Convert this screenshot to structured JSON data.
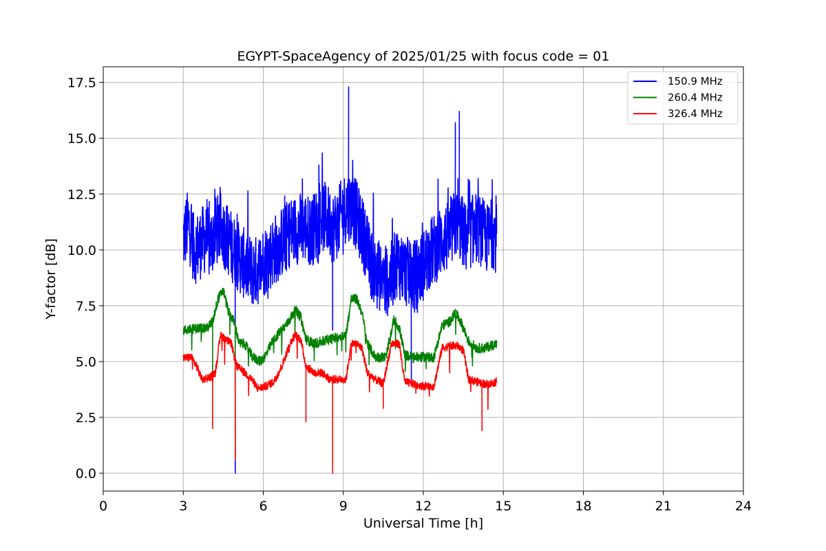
{
  "chart_data": {
    "type": "line",
    "title": "EGYPT-SpaceAgency of 2025/01/25 with focus code = 01",
    "xlabel": "Universal Time [h]",
    "ylabel": "Y-factor [dB]",
    "xlim": [
      0,
      24
    ],
    "ylim": [
      -0.8,
      18.2
    ],
    "xticks": [
      0,
      3,
      6,
      9,
      12,
      15,
      18,
      21,
      24
    ],
    "xtick_labels": [
      "0",
      "3",
      "6",
      "9",
      "12",
      "15",
      "18",
      "21",
      "24"
    ],
    "yticks": [
      0.0,
      2.5,
      5.0,
      7.5,
      10.0,
      12.5,
      15.0,
      17.5
    ],
    "ytick_labels": [
      "0.0",
      "2.5",
      "5.0",
      "7.5",
      "10.0",
      "12.5",
      "15.0",
      "17.5"
    ],
    "grid": true,
    "legend_position": "top-right",
    "x_range_of_data": [
      3.0,
      14.75
    ],
    "series": [
      {
        "name": "150.9 MHz",
        "color": "#0000ff",
        "points": [
          [
            3.0,
            10.5
          ],
          [
            3.2,
            11.2
          ],
          [
            3.4,
            10.0
          ],
          [
            3.6,
            10.2
          ],
          [
            3.8,
            10.5
          ],
          [
            4.0,
            10.2
          ],
          [
            4.2,
            10.8
          ],
          [
            4.4,
            11.0
          ],
          [
            4.6,
            10.6
          ],
          [
            4.8,
            10.2
          ],
          [
            5.0,
            9.8
          ],
          [
            5.2,
            9.5
          ],
          [
            5.4,
            9.2
          ],
          [
            5.6,
            9.0
          ],
          [
            5.8,
            9.1
          ],
          [
            6.0,
            9.5
          ],
          [
            6.2,
            9.7
          ],
          [
            6.4,
            10.0
          ],
          [
            6.6,
            10.2
          ],
          [
            6.8,
            10.5
          ],
          [
            7.0,
            10.8
          ],
          [
            7.2,
            10.9
          ],
          [
            7.4,
            11.0
          ],
          [
            7.6,
            11.0
          ],
          [
            7.8,
            10.8
          ],
          [
            8.0,
            11.2
          ],
          [
            8.2,
            11.5
          ],
          [
            8.4,
            11.4
          ],
          [
            8.6,
            11.0
          ],
          [
            8.8,
            11.2
          ],
          [
            9.0,
            11.8
          ],
          [
            9.2,
            12.0
          ],
          [
            9.4,
            11.8
          ],
          [
            9.6,
            11.2
          ],
          [
            9.8,
            10.5
          ],
          [
            10.0,
            9.5
          ],
          [
            10.2,
            9.0
          ],
          [
            10.4,
            8.8
          ],
          [
            10.6,
            8.5
          ],
          [
            10.8,
            8.8
          ],
          [
            11.0,
            9.5
          ],
          [
            11.2,
            9.2
          ],
          [
            11.4,
            9.0
          ],
          [
            11.6,
            8.8
          ],
          [
            11.8,
            9.0
          ],
          [
            12.0,
            9.3
          ],
          [
            12.2,
            9.8
          ],
          [
            12.4,
            10.0
          ],
          [
            12.6,
            10.3
          ],
          [
            12.8,
            10.5
          ],
          [
            13.0,
            10.6
          ],
          [
            13.2,
            11.2
          ],
          [
            13.4,
            11.0
          ],
          [
            13.6,
            10.5
          ],
          [
            13.8,
            10.8
          ],
          [
            14.0,
            11.0
          ],
          [
            14.2,
            10.8
          ],
          [
            14.4,
            10.5
          ],
          [
            14.6,
            10.8
          ],
          [
            14.75,
            10.5
          ]
        ],
        "spikes": [
          [
            4.95,
            0.0
          ],
          [
            9.2,
            17.3
          ],
          [
            8.6,
            6.4
          ],
          [
            13.35,
            16.2
          ],
          [
            11.55,
            4.2
          ],
          [
            13.2,
            15.7
          ]
        ]
      },
      {
        "name": "260.4 MHz",
        "color": "#008000",
        "points": [
          [
            3.0,
            6.4
          ],
          [
            3.3,
            6.45
          ],
          [
            3.6,
            6.5
          ],
          [
            3.9,
            6.5
          ],
          [
            4.1,
            6.8
          ],
          [
            4.3,
            7.8
          ],
          [
            4.5,
            8.2
          ],
          [
            4.7,
            7.2
          ],
          [
            4.9,
            6.8
          ],
          [
            5.1,
            5.8
          ],
          [
            5.3,
            5.8
          ],
          [
            5.6,
            5.2
          ],
          [
            5.9,
            5.0
          ],
          [
            6.1,
            5.3
          ],
          [
            6.3,
            5.8
          ],
          [
            6.6,
            6.3
          ],
          [
            6.9,
            6.7
          ],
          [
            7.2,
            7.3
          ],
          [
            7.4,
            7.0
          ],
          [
            7.6,
            6.0
          ],
          [
            7.9,
            5.8
          ],
          [
            8.2,
            5.9
          ],
          [
            8.5,
            6.0
          ],
          [
            8.8,
            6.1
          ],
          [
            9.1,
            6.2
          ],
          [
            9.3,
            7.8
          ],
          [
            9.5,
            7.8
          ],
          [
            9.7,
            7.2
          ],
          [
            9.9,
            5.8
          ],
          [
            10.2,
            5.2
          ],
          [
            10.6,
            5.2
          ],
          [
            10.9,
            6.9
          ],
          [
            11.1,
            6.5
          ],
          [
            11.3,
            5.3
          ],
          [
            11.6,
            5.2
          ],
          [
            12.0,
            5.2
          ],
          [
            12.4,
            5.2
          ],
          [
            12.7,
            6.6
          ],
          [
            13.0,
            6.8
          ],
          [
            13.2,
            7.2
          ],
          [
            13.4,
            6.8
          ],
          [
            13.7,
            5.9
          ],
          [
            14.0,
            5.6
          ],
          [
            14.3,
            5.6
          ],
          [
            14.5,
            5.7
          ],
          [
            14.75,
            5.8
          ]
        ],
        "spikes": [
          [
            4.95,
            0.6
          ],
          [
            4.1,
            4.1
          ]
        ]
      },
      {
        "name": "326.4 MHz",
        "color": "#ff0000",
        "points": [
          [
            3.0,
            5.15
          ],
          [
            3.3,
            5.2
          ],
          [
            3.5,
            4.8
          ],
          [
            3.7,
            4.2
          ],
          [
            4.0,
            4.3
          ],
          [
            4.2,
            4.5
          ],
          [
            4.4,
            6.2
          ],
          [
            4.6,
            6.0
          ],
          [
            4.8,
            5.8
          ],
          [
            5.0,
            4.8
          ],
          [
            5.2,
            4.6
          ],
          [
            5.5,
            4.3
          ],
          [
            5.8,
            3.8
          ],
          [
            6.1,
            3.9
          ],
          [
            6.4,
            4.1
          ],
          [
            6.7,
            4.8
          ],
          [
            7.0,
            5.8
          ],
          [
            7.2,
            6.2
          ],
          [
            7.4,
            6.0
          ],
          [
            7.6,
            4.8
          ],
          [
            7.9,
            4.5
          ],
          [
            8.2,
            4.5
          ],
          [
            8.5,
            4.2
          ],
          [
            8.8,
            4.2
          ],
          [
            9.1,
            4.2
          ],
          [
            9.3,
            5.8
          ],
          [
            9.5,
            5.8
          ],
          [
            9.7,
            5.6
          ],
          [
            9.9,
            4.5
          ],
          [
            10.2,
            4.2
          ],
          [
            10.5,
            4.0
          ],
          [
            10.8,
            5.8
          ],
          [
            11.1,
            5.8
          ],
          [
            11.3,
            4.1
          ],
          [
            11.6,
            4.0
          ],
          [
            12.0,
            3.9
          ],
          [
            12.4,
            3.9
          ],
          [
            12.7,
            5.6
          ],
          [
            13.0,
            5.7
          ],
          [
            13.3,
            5.7
          ],
          [
            13.5,
            5.5
          ],
          [
            13.7,
            4.2
          ],
          [
            14.0,
            4.1
          ],
          [
            14.3,
            4.0
          ],
          [
            14.5,
            4.0
          ],
          [
            14.75,
            4.1
          ]
        ],
        "spikes": [
          [
            4.95,
            0.6
          ],
          [
            8.6,
            0.0
          ],
          [
            4.1,
            2.0
          ],
          [
            14.2,
            1.9
          ],
          [
            7.6,
            2.3
          ],
          [
            10.5,
            2.9
          ]
        ]
      }
    ]
  }
}
